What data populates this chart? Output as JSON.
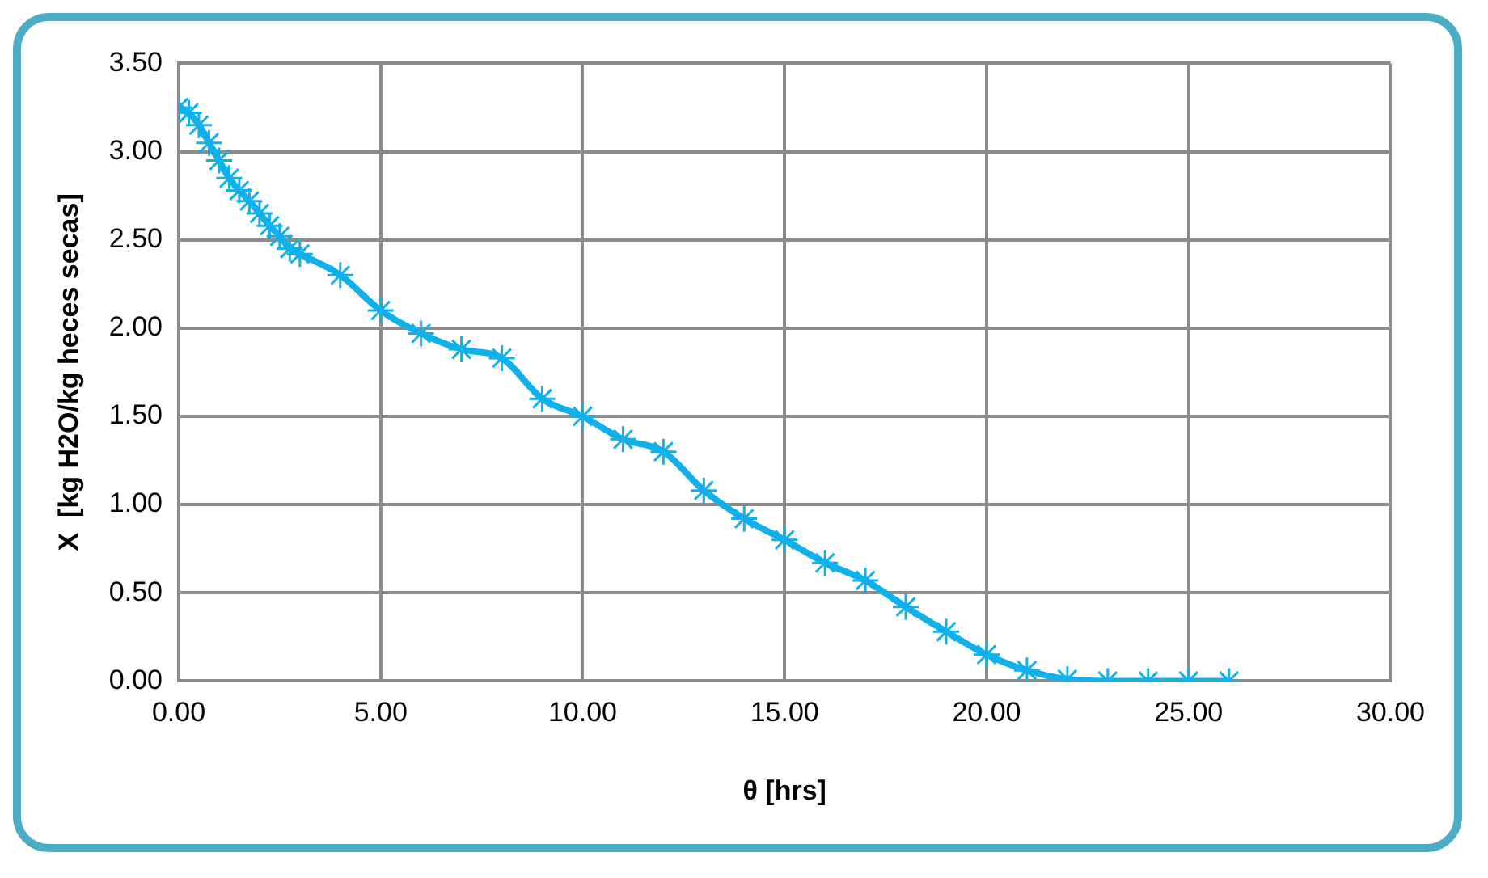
{
  "chart_data": {
    "type": "line",
    "xlabel": "θ [hrs]",
    "ylabel": "X  [kg H2O/kg heces secas]",
    "x": [
      0,
      0.25,
      0.5,
      0.75,
      1,
      1.25,
      1.5,
      1.75,
      2,
      2.25,
      2.5,
      2.75,
      3,
      4,
      5,
      6,
      7,
      8,
      9,
      10,
      11,
      12,
      13,
      14,
      15,
      16,
      17,
      18,
      19,
      20,
      21,
      22,
      23,
      24,
      25,
      26
    ],
    "series": [
      {
        "color": "#10b0ea",
        "values": [
          3.25,
          3.22,
          3.15,
          3.05,
          2.95,
          2.85,
          2.78,
          2.72,
          2.65,
          2.58,
          2.52,
          2.45,
          2.42,
          2.3,
          2.1,
          1.97,
          1.88,
          1.83,
          1.6,
          1.5,
          1.37,
          1.3,
          1.08,
          0.92,
          0.8,
          0.67,
          0.57,
          0.42,
          0.28,
          0.15,
          0.06,
          0.01,
          0,
          0,
          0,
          0
        ]
      }
    ],
    "xlim": [
      0,
      30
    ],
    "xticks": [
      {
        "value": 0,
        "label": "0.00"
      },
      {
        "value": 5,
        "label": "5.00"
      },
      {
        "value": 10,
        "label": "10.00"
      },
      {
        "value": 15,
        "label": "15.00"
      },
      {
        "value": 20,
        "label": "20.00"
      },
      {
        "value": 25,
        "label": "25.00"
      },
      {
        "value": 30,
        "label": "30.00"
      }
    ],
    "ylim": [
      0,
      3.5
    ],
    "yticks": [
      {
        "value": 0,
        "label": "0.00"
      },
      {
        "value": 0.5,
        "label": "0.50"
      },
      {
        "value": 1,
        "label": "1.00"
      },
      {
        "value": 1.5,
        "label": "1.50"
      },
      {
        "value": 2,
        "label": "2.00"
      },
      {
        "value": 2.5,
        "label": "2.50"
      },
      {
        "value": 3,
        "label": "3.00"
      },
      {
        "value": 3.5,
        "label": "3.50"
      }
    ],
    "grid": true,
    "legend": false,
    "marker": "cross",
    "line_style": "solid"
  }
}
